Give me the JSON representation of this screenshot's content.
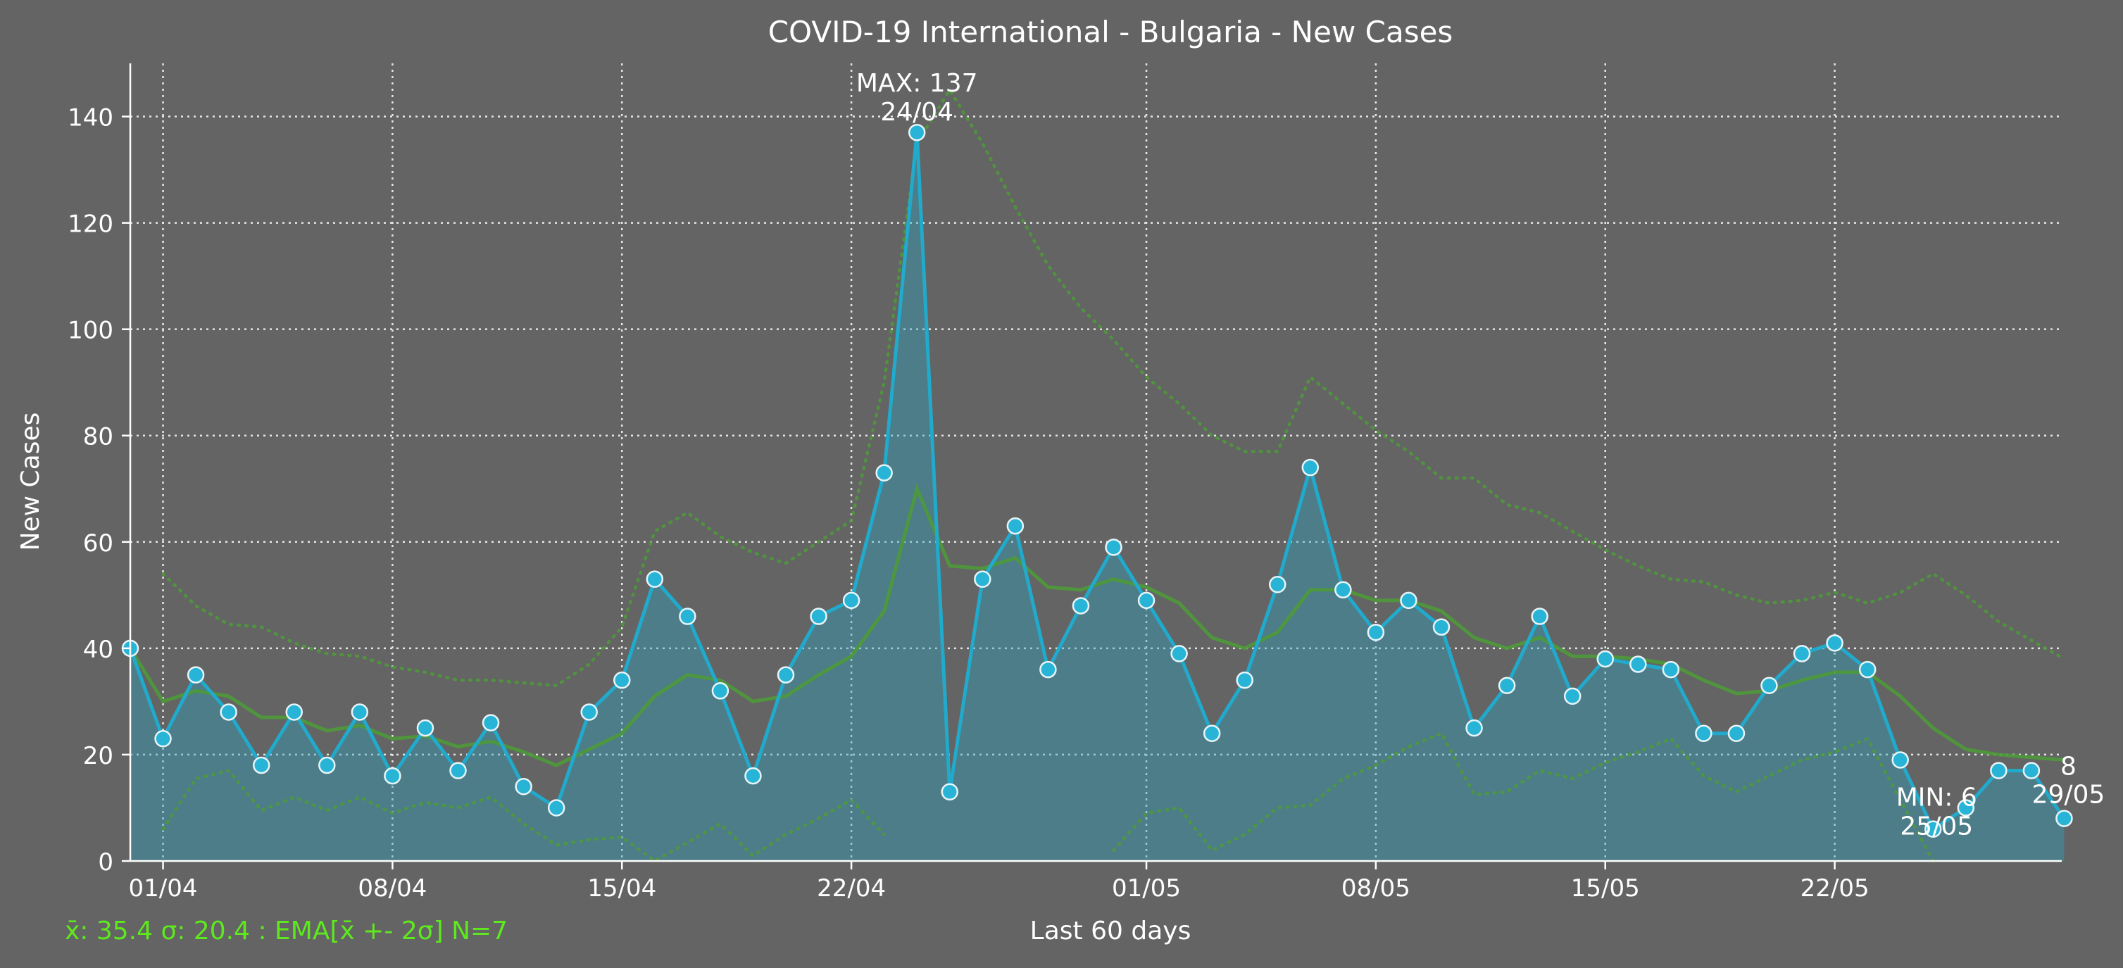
{
  "chart_data": {
    "type": "line",
    "title": "COVID-19 International - Bulgaria - New Cases",
    "xlabel": "Last 60 days",
    "ylabel": "New Cases",
    "ylim": [
      0,
      150
    ],
    "yticks": [
      "0",
      "20",
      "40",
      "60",
      "80",
      "100",
      "120",
      "140"
    ],
    "xticks": [
      "01/04",
      "08/04",
      "15/04",
      "22/04",
      "01/05",
      "08/05",
      "15/05",
      "22/05"
    ],
    "grid": true,
    "x": [
      "31/03",
      "01/04",
      "02/04",
      "03/04",
      "04/04",
      "05/04",
      "06/04",
      "07/04",
      "08/04",
      "09/04",
      "10/04",
      "11/04",
      "12/04",
      "13/04",
      "14/04",
      "15/04",
      "16/04",
      "17/04",
      "18/04",
      "19/04",
      "20/04",
      "21/04",
      "22/04",
      "23/04",
      "24/04",
      "25/04",
      "26/04",
      "27/04",
      "28/04",
      "29/04",
      "30/04",
      "01/05",
      "02/05",
      "03/05",
      "04/05",
      "05/05",
      "06/05",
      "07/05",
      "08/05",
      "09/05",
      "10/05",
      "11/05",
      "12/05",
      "13/05",
      "14/05",
      "15/05",
      "16/05",
      "17/05",
      "18/05",
      "19/05",
      "20/05",
      "21/05",
      "22/05",
      "23/05",
      "24/05",
      "25/05",
      "26/05",
      "27/05",
      "28/05",
      "29/05"
    ],
    "series": [
      {
        "role": "new_cases",
        "color": "#21aacc",
        "values": [
          40,
          23,
          35,
          28,
          18,
          28,
          18,
          28,
          16,
          25,
          17,
          26,
          14,
          10,
          28,
          34,
          53,
          46,
          32,
          16,
          35,
          46,
          49,
          73,
          137,
          13,
          53,
          63,
          36,
          48,
          59,
          49,
          39,
          24,
          34,
          52,
          74,
          51,
          43,
          49,
          44,
          25,
          33,
          46,
          31,
          38,
          37,
          36,
          24,
          24,
          33,
          39,
          41,
          36,
          19,
          6,
          10,
          17,
          17,
          8
        ]
      },
      {
        "role": "ema",
        "color": "#4e9a3a",
        "values": [
          40,
          30,
          32,
          31,
          27,
          27,
          24.5,
          25.5,
          23,
          23.5,
          21.5,
          22.5,
          20.5,
          18,
          21,
          24,
          31,
          35,
          34,
          30,
          31,
          35,
          38.5,
          47,
          70,
          55.5,
          55,
          57,
          51.5,
          51,
          53,
          51.5,
          48.5,
          42,
          40,
          43,
          51,
          51,
          49,
          49,
          47,
          42,
          40,
          42,
          38.5,
          38.5,
          38,
          37,
          34,
          31.5,
          32,
          34,
          35.5,
          35.5,
          31,
          25,
          21,
          20,
          19.5,
          19
        ]
      },
      {
        "role": "ema_upper",
        "color": "#4e9a3a",
        "values": [
          null,
          54,
          48,
          44.5,
          44,
          41,
          39,
          38.5,
          36.5,
          35.5,
          34,
          34,
          33.5,
          33,
          37,
          44,
          62,
          65.5,
          61,
          58,
          56,
          60,
          64,
          90,
          135,
          145,
          135,
          123,
          112,
          104,
          98,
          91,
          86,
          80,
          77,
          77,
          91,
          86,
          81,
          77,
          72,
          72,
          67,
          65.5,
          62,
          58.5,
          55.5,
          53,
          52.5,
          50,
          48.5,
          49,
          50.5,
          48.5,
          50.5,
          54,
          50,
          45,
          41.5,
          38
        ]
      },
      {
        "role": "ema_lower",
        "color": "#4e9a3a",
        "values": [
          null,
          6,
          15.5,
          17,
          9.5,
          12,
          9.5,
          12,
          9,
          11,
          10,
          12,
          7,
          3,
          4,
          4.5,
          0,
          3.5,
          7,
          1,
          5,
          8,
          11.5,
          5,
          null,
          null,
          null,
          null,
          null,
          null,
          2,
          9,
          10,
          2,
          5,
          10,
          10.5,
          15.5,
          18,
          21.5,
          24,
          12.5,
          13,
          17,
          15.5,
          18.5,
          20.5,
          23,
          16,
          13,
          16,
          19,
          20.5,
          23,
          11.5,
          0,
          null,
          null,
          null,
          null
        ]
      }
    ],
    "annotations": [
      {
        "kind": "max",
        "label": "MAX: 137",
        "date": "24/04",
        "value": 137
      },
      {
        "kind": "min",
        "label": "MIN: 6",
        "date": "25/05",
        "value": 6
      },
      {
        "kind": "last",
        "label": "8",
        "date": "29/05",
        "value": 8
      }
    ],
    "stats_text": "x̄: 35.4 σ: 20.4 : EMA[x̄ +- 2σ] N=7"
  }
}
